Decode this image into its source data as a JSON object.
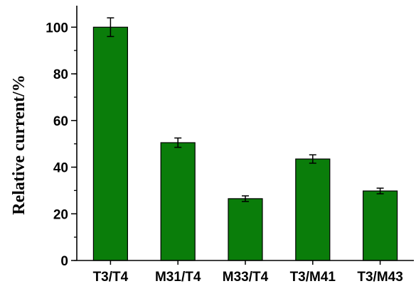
{
  "chart_data": {
    "type": "bar",
    "title": "",
    "xlabel": "",
    "ylabel": "Relative current/%",
    "categories": [
      "T3/T4",
      "M31/T4",
      "M33/T4",
      "T3/M41",
      "T3/M43"
    ],
    "values": [
      100,
      50.5,
      26.5,
      43.5,
      29.8
    ],
    "errors": [
      4,
      2,
      1.2,
      1.8,
      1.2
    ],
    "ylim": [
      0,
      108
    ],
    "yticks": [
      0,
      20,
      40,
      60,
      80,
      100
    ],
    "minor_tick_step": 10,
    "grid": false,
    "legend": "none",
    "bar_color": "#0a7d0a",
    "bar_edge_color": "#000000"
  }
}
